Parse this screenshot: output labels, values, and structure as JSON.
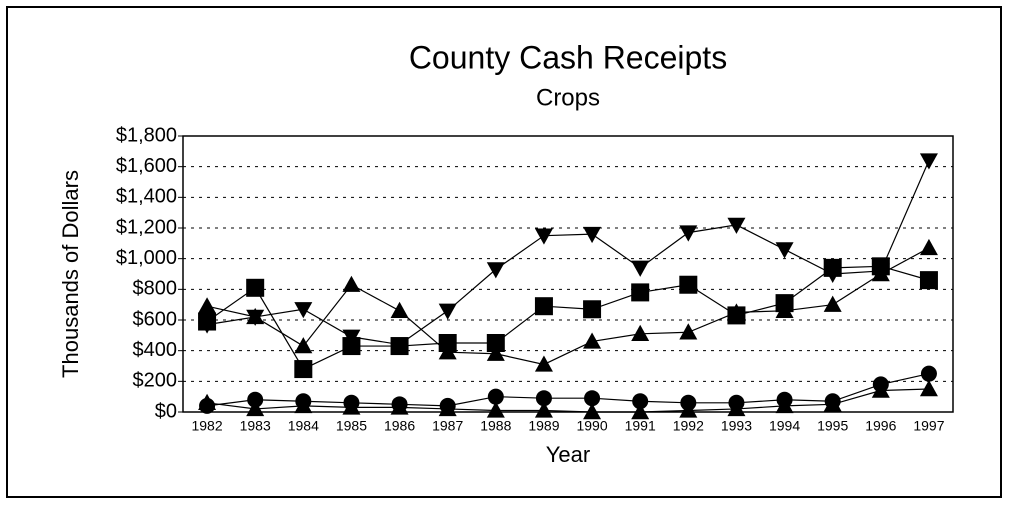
{
  "chart_data": {
    "type": "line",
    "title": "County Cash Receipts",
    "subtitle": "Crops",
    "xlabel": "Year",
    "ylabel": "Thousands of Dollars",
    "categories": [
      "1982",
      "1983",
      "1984",
      "1985",
      "1986",
      "1987",
      "1988",
      "1989",
      "1990",
      "1991",
      "1992",
      "1993",
      "1994",
      "1995",
      "1996",
      "1997"
    ],
    "series": [
      {
        "marker": "triangle-down",
        "color": "#000000",
        "values": [
          570,
          620,
          670,
          490,
          440,
          660,
          930,
          1150,
          1160,
          940,
          1170,
          1220,
          1060,
          900,
          920,
          1640
        ]
      },
      {
        "marker": "square",
        "color": "#000000",
        "values": [
          590,
          810,
          280,
          430,
          430,
          450,
          450,
          690,
          670,
          780,
          830,
          630,
          710,
          940,
          950,
          860
        ]
      },
      {
        "marker": "triangle-up",
        "color": "#000000",
        "values": [
          690,
          620,
          430,
          830,
          660,
          390,
          380,
          310,
          460,
          510,
          520,
          650,
          660,
          700,
          900,
          1070
        ]
      },
      {
        "marker": "circle",
        "color": "#000000",
        "values": [
          40,
          80,
          70,
          60,
          50,
          40,
          100,
          90,
          90,
          70,
          60,
          60,
          80,
          70,
          180,
          250
        ]
      },
      {
        "marker": "triangle-up",
        "color": "#000000",
        "values": [
          60,
          20,
          40,
          30,
          30,
          20,
          10,
          10,
          0,
          0,
          10,
          20,
          40,
          50,
          140,
          150
        ]
      }
    ],
    "ylim": [
      0,
      1800
    ],
    "yticks": [
      {
        "value": 0,
        "label": "$0"
      },
      {
        "value": 200,
        "label": "$200"
      },
      {
        "value": 400,
        "label": "$400"
      },
      {
        "value": 600,
        "label": "$600"
      },
      {
        "value": 800,
        "label": "$800"
      },
      {
        "value": 1000,
        "label": "$1,000"
      },
      {
        "value": 1200,
        "label": "$1,200"
      },
      {
        "value": 1400,
        "label": "$1,400"
      },
      {
        "value": 1600,
        "label": "$1,600"
      },
      {
        "value": 1800,
        "label": "$1,800"
      }
    ],
    "grid": true
  }
}
